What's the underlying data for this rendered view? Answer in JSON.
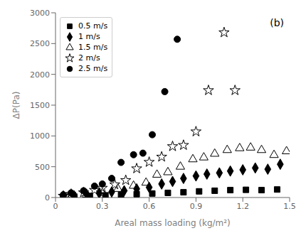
{
  "chart_data": {
    "type": "scatter",
    "title": "(b)",
    "xlabel": "Areal mass loading (kg/m²)",
    "ylabel": "ΔP(Pa)",
    "xlim": [
      0.0,
      1.5
    ],
    "ylim": [
      0,
      3000
    ],
    "xticks": [
      0.0,
      0.3,
      0.6,
      0.9,
      1.2,
      1.5
    ],
    "yticks": [
      0,
      500,
      1000,
      1500,
      2000,
      2500,
      3000
    ],
    "grid": false,
    "legend": "upper left",
    "series": [
      {
        "name": "0.5 m/s",
        "color": "black",
        "marker": "square",
        "x": [
          0.05,
          0.12,
          0.22,
          0.32,
          0.42,
          0.52,
          0.62,
          0.72,
          0.82,
          0.92,
          1.02,
          1.12,
          1.22,
          1.32,
          1.42
        ],
        "values": [
          8,
          15,
          25,
          35,
          45,
          55,
          65,
          75,
          85,
          100,
          110,
          120,
          125,
          120,
          130
        ]
      },
      {
        "name": "1 m/s",
        "color": "black",
        "marker": "diamond",
        "x": [
          0.05,
          0.12,
          0.2,
          0.28,
          0.36,
          0.44,
          0.52,
          0.6,
          0.68,
          0.75,
          0.82,
          0.9,
          0.97,
          1.05,
          1.12,
          1.2,
          1.28,
          1.36,
          1.44
        ],
        "values": [
          15,
          25,
          50,
          70,
          90,
          110,
          140,
          165,
          220,
          260,
          310,
          350,
          380,
          400,
          430,
          450,
          480,
          460,
          540
        ]
      },
      {
        "name": "1.5 m/s",
        "color": "black",
        "marker": "triangle-open",
        "x": [
          0.1,
          0.2,
          0.3,
          0.4,
          0.5,
          0.58,
          0.65,
          0.72,
          0.8,
          0.88,
          0.95,
          1.02,
          1.1,
          1.18,
          1.25,
          1.32,
          1.4,
          1.48
        ],
        "values": [
          25,
          45,
          75,
          140,
          190,
          240,
          370,
          410,
          500,
          620,
          650,
          710,
          770,
          800,
          810,
          770,
          690,
          750
        ]
      },
      {
        "name": "2 m/s",
        "color": "black",
        "marker": "star-open",
        "x": [
          0.05,
          0.1,
          0.18,
          0.25,
          0.3,
          0.38,
          0.45,
          0.52,
          0.6,
          0.68,
          0.75,
          0.82,
          0.9,
          0.98,
          1.08,
          1.15
        ],
        "values": [
          25,
          55,
          80,
          120,
          155,
          210,
          280,
          470,
          575,
          660,
          830,
          850,
          1070,
          1740,
          2680,
          1740
        ]
      },
      {
        "name": "2.5 m/s",
        "color": "black",
        "marker": "circle",
        "x": [
          0.05,
          0.1,
          0.18,
          0.25,
          0.3,
          0.36,
          0.42,
          0.5,
          0.56,
          0.62,
          0.7,
          0.78
        ],
        "values": [
          45,
          75,
          110,
          185,
          220,
          310,
          570,
          695,
          720,
          1020,
          1720,
          2570
        ]
      }
    ]
  }
}
